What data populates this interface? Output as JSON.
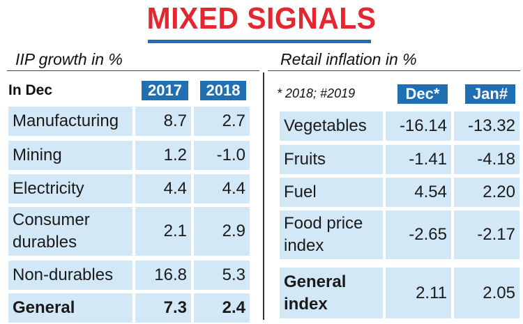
{
  "headline": "MIXED SIGNALS",
  "iip": {
    "subtitle": "IIP growth in %",
    "row_header": "In Dec",
    "years": [
      "2017",
      "2018"
    ],
    "rows": [
      {
        "label": "Manufacturing",
        "v2017": "8.7",
        "v2018": "2.7"
      },
      {
        "label": "Mining",
        "v2017": "1.2",
        "v2018": "-1.0"
      },
      {
        "label": "Electricity",
        "v2017": "4.4",
        "v2018": "4.4"
      },
      {
        "label": "Consumer durables",
        "v2017": "2.1",
        "v2018": "2.9"
      },
      {
        "label": "Non-durables",
        "v2017": "16.8",
        "v2018": "5.3"
      },
      {
        "label": "General",
        "v2017": "7.3",
        "v2018": "2.4"
      }
    ]
  },
  "inflation": {
    "subtitle": "Retail inflation in %",
    "note": "* 2018; #2019",
    "columns": [
      "Dec*",
      "Jan#"
    ],
    "rows": [
      {
        "label": "Vegetables",
        "dec": "-16.14",
        "jan": "-13.32"
      },
      {
        "label": "Fruits",
        "dec": "-1.41",
        "jan": "-4.18"
      },
      {
        "label": "Fuel",
        "dec": "4.54",
        "jan": "2.20"
      },
      {
        "label": "Food price index",
        "dec": "-2.65",
        "jan": "-2.17"
      },
      {
        "label": "General index",
        "dec": "2.11",
        "jan": "2.05"
      }
    ]
  },
  "colors": {
    "headline": "#e3262f",
    "accent": "#1f6fb2",
    "row_shade": "#d3e8f7"
  },
  "chart_data": [
    {
      "type": "table",
      "title": "IIP growth in %",
      "columns": [
        "In Dec",
        "2017",
        "2018"
      ],
      "rows": [
        [
          "Manufacturing",
          8.7,
          2.7
        ],
        [
          "Mining",
          1.2,
          -1.0
        ],
        [
          "Electricity",
          4.4,
          4.4
        ],
        [
          "Consumer durables",
          2.1,
          2.9
        ],
        [
          "Non-durables",
          16.8,
          5.3
        ],
        [
          "General",
          7.3,
          2.4
        ]
      ]
    },
    {
      "type": "table",
      "title": "Retail inflation in %",
      "columns": [
        "",
        "Dec*",
        "Jan#"
      ],
      "rows": [
        [
          "Vegetables",
          -16.14,
          -13.32
        ],
        [
          "Fruits",
          -1.41,
          -4.18
        ],
        [
          "Fuel",
          4.54,
          2.2
        ],
        [
          "Food price index",
          -2.65,
          -2.17
        ],
        [
          "General index",
          2.11,
          2.05
        ]
      ]
    }
  ]
}
